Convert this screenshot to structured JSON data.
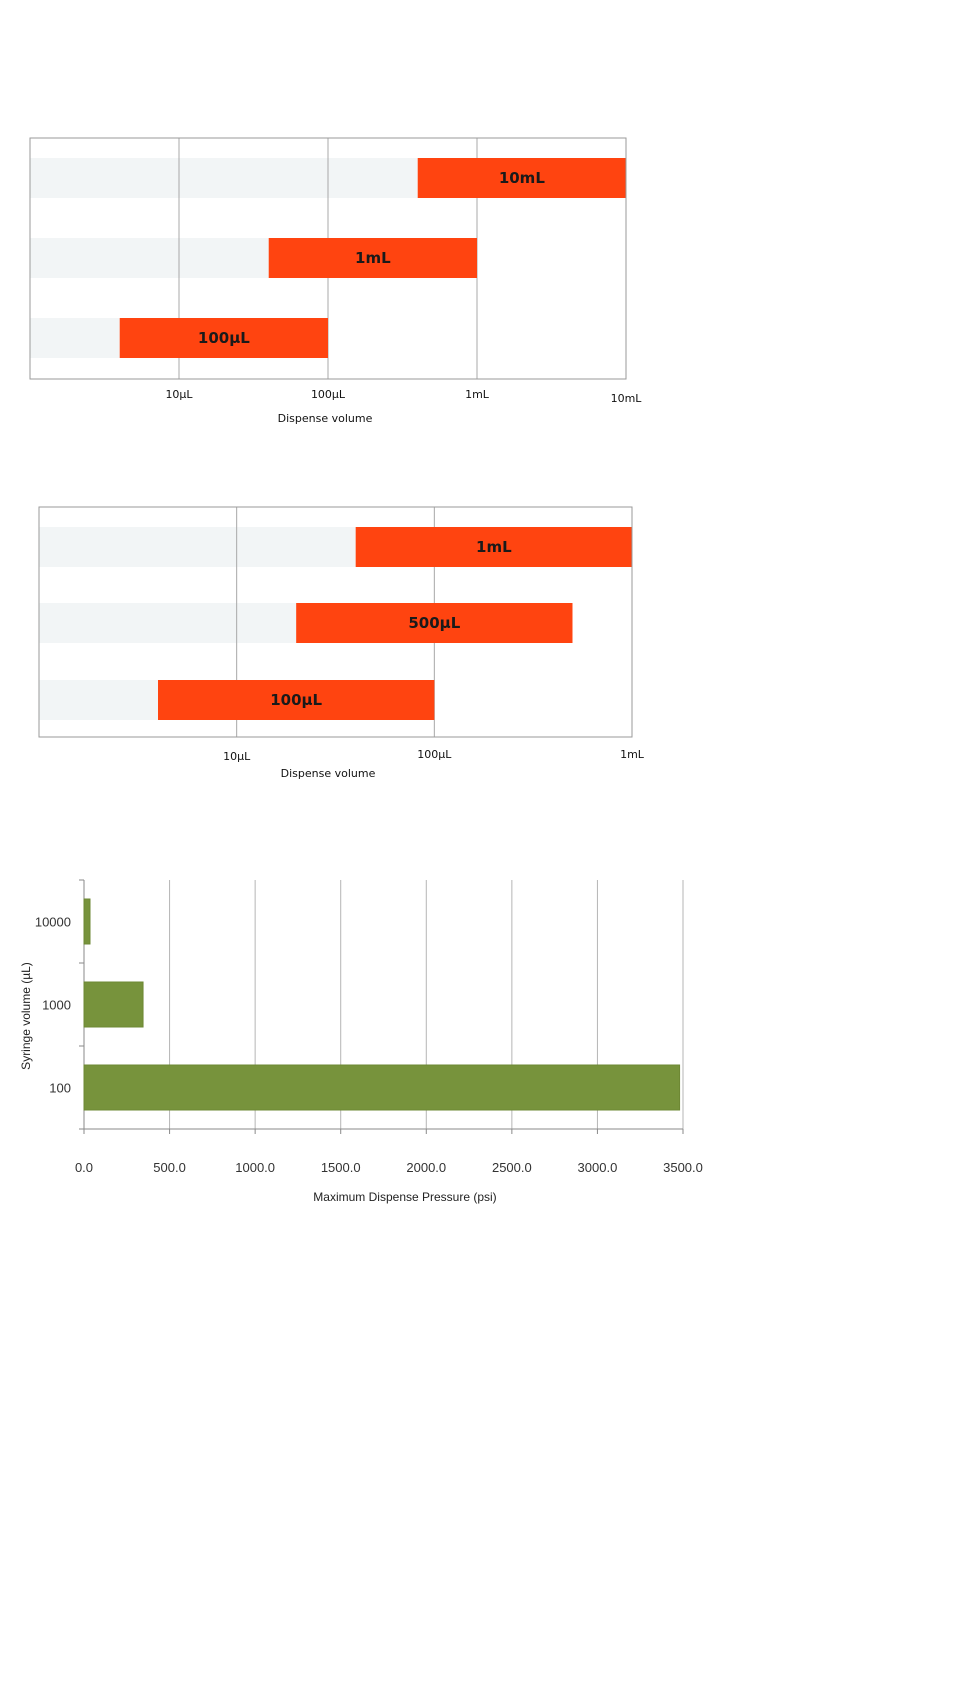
{
  "chart_data": [
    {
      "type": "bar",
      "orientation": "horizontal",
      "scale": "log",
      "xlabel": "Dispense volume",
      "ticks": [
        "10µL",
        "100µL",
        "1mL",
        "10mL"
      ],
      "tick_values_uL": [
        10,
        100,
        1000,
        10000
      ],
      "xlim_uL": [
        1,
        10000
      ],
      "grid": true,
      "bar_color": "#ff4410",
      "track_color": "#f2f5f6",
      "bars": [
        {
          "label": "10mL",
          "min_uL": 400,
          "max_uL": 10000
        },
        {
          "label": "1mL",
          "min_uL": 40,
          "max_uL": 1000
        },
        {
          "label": "100µL",
          "min_uL": 4,
          "max_uL": 100
        }
      ]
    },
    {
      "type": "bar",
      "orientation": "horizontal",
      "scale": "log",
      "xlabel": "Dispense volume",
      "ticks": [
        "10µL",
        "100µL",
        "1mL"
      ],
      "tick_values_uL": [
        10,
        100,
        1000
      ],
      "xlim_uL": [
        1,
        1000
      ],
      "grid": true,
      "bar_color": "#ff4410",
      "track_color": "#f2f5f6",
      "bars": [
        {
          "label": "1mL",
          "min_uL": 40,
          "max_uL": 1000
        },
        {
          "label": "500µL",
          "min_uL": 20,
          "max_uL": 500
        },
        {
          "label": "100µL",
          "min_uL": 4,
          "max_uL": 100
        }
      ]
    },
    {
      "type": "bar",
      "orientation": "horizontal",
      "xlabel": "Maximum Dispense Pressure (psi)",
      "ylabel": "Syringe volume (µL)",
      "xlim": [
        0,
        3500
      ],
      "xticks": [
        "0.0",
        "500.0",
        "1000.0",
        "1500.0",
        "2000.0",
        "2500.0",
        "3000.0",
        "3500.0"
      ],
      "grid": true,
      "bar_color": "#77933c",
      "categories": [
        "10000",
        "1000",
        "100"
      ],
      "values": [
        35,
        345,
        3480
      ]
    }
  ]
}
